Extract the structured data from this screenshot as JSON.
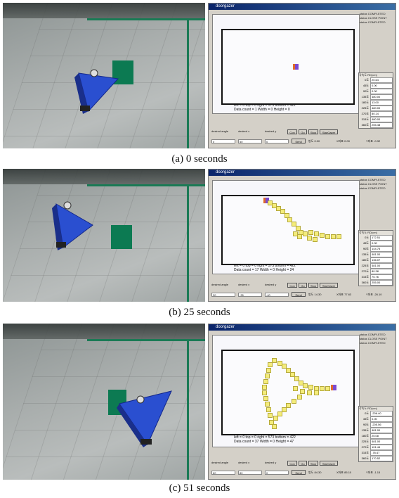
{
  "panels": [
    {
      "caption": "(a) 0 seconds",
      "window_title": "doorgazer",
      "status_lines": [
        "status  COMPLETED",
        "status  CLOSE POINT",
        "status  COMPLETED"
      ],
      "stats_line1": "left = 0      top = 0      right = 573      bottom = 422",
      "stats_line2": "Data count = 1      Width = 0      Height = 0",
      "dist_header": "각속도 RD(cm)",
      "dist_rows": [
        [
          "0도",
          "20.64"
        ],
        [
          "45도",
          "0.00"
        ],
        [
          "90도",
          "0.00"
        ],
        [
          "135도",
          "480.00"
        ],
        [
          "180도",
          "13.00"
        ],
        [
          "225도",
          "480.00"
        ],
        [
          "270도",
          "80.14"
        ],
        [
          "315도",
          "480.00"
        ],
        [
          "360도",
          "255.48"
        ]
      ],
      "ctl_labels": [
        "desired angle",
        "desired x",
        "desired y"
      ],
      "ctl_values": [
        "0",
        "50",
        "0"
      ],
      "buttons": [
        "Con",
        "Go",
        "Stop",
        "StarGazer"
      ],
      "send_label": "Send",
      "readouts": [
        "방도 0.00",
        "X좌표 0.00",
        "Y좌표 -0.32"
      ]
    },
    {
      "caption": "(b) 25 seconds",
      "window_title": "doorgazer",
      "status_lines": [
        "status  COMPLETED",
        "status  CLOSE POINT",
        "status  COMPLETED"
      ],
      "stats_line1": "left = 0      top = 0      right = 573      bottom = 422",
      "stats_line2": "Data count = 17      Width = 0      Height = 24",
      "dist_header": "각속도 RD(cm)",
      "dist_rows": [
        [
          "0도",
          "172.51"
        ],
        [
          "45도",
          "0.00"
        ],
        [
          "90도",
          "144.75"
        ],
        [
          "135도",
          "481.00"
        ],
        [
          "180도",
          "136.07"
        ],
        [
          "225도",
          "481.00"
        ],
        [
          "270도",
          "80.38"
        ],
        [
          "315도",
          "75.76"
        ],
        [
          "360도",
          "255.00"
        ]
      ],
      "ctl_labels": [
        "desired angle",
        "desired x",
        "desired y"
      ],
      "ctl_values": [
        "30",
        "-35",
        "-40"
      ],
      "buttons": [
        "Con",
        "Go",
        "Stop",
        "StarGazer"
      ],
      "send_label": "Send",
      "readouts": [
        "방도 14.30",
        "X좌표 77.63",
        "Y좌표 -26.10"
      ]
    },
    {
      "caption": "(c) 51 seconds",
      "window_title": "doorgazer",
      "status_lines": [
        "status  COMPLETED",
        "status  CLOSE POINT",
        "status  COMPLETED"
      ],
      "stats_line1": "left = 0      top = 0      right = 573      bottom = 422",
      "stats_line2": "Data count = 37      Width = 0      Height = 47",
      "dist_header": "각속도 RD(cm)",
      "dist_rows": [
        [
          "0도",
          "-206.40"
        ],
        [
          "45도",
          "0.00"
        ],
        [
          "90도",
          "-205.56"
        ],
        [
          "135도",
          "481.00"
        ],
        [
          "180도",
          "25.08"
        ],
        [
          "225도",
          "481.00"
        ],
        [
          "270도",
          "101.44"
        ],
        [
          "315도",
          "-78.47"
        ],
        [
          "360도",
          "170.52"
        ]
      ],
      "ctl_labels": [
        "desired angle",
        "desired x",
        "desired y"
      ],
      "ctl_values": [
        "60",
        "80",
        "0"
      ],
      "buttons": [
        "Con",
        "Go",
        "Stop",
        "StarGazer"
      ],
      "send_label": "Send",
      "readouts": [
        "방도 84.30",
        "X좌표 85.10",
        "Y좌표 -1.15"
      ]
    }
  ],
  "colors": {
    "robot_blue": "#2a4fd0",
    "floor_green": "#0c7a52",
    "trail_yellow": "#f4ec7a"
  }
}
